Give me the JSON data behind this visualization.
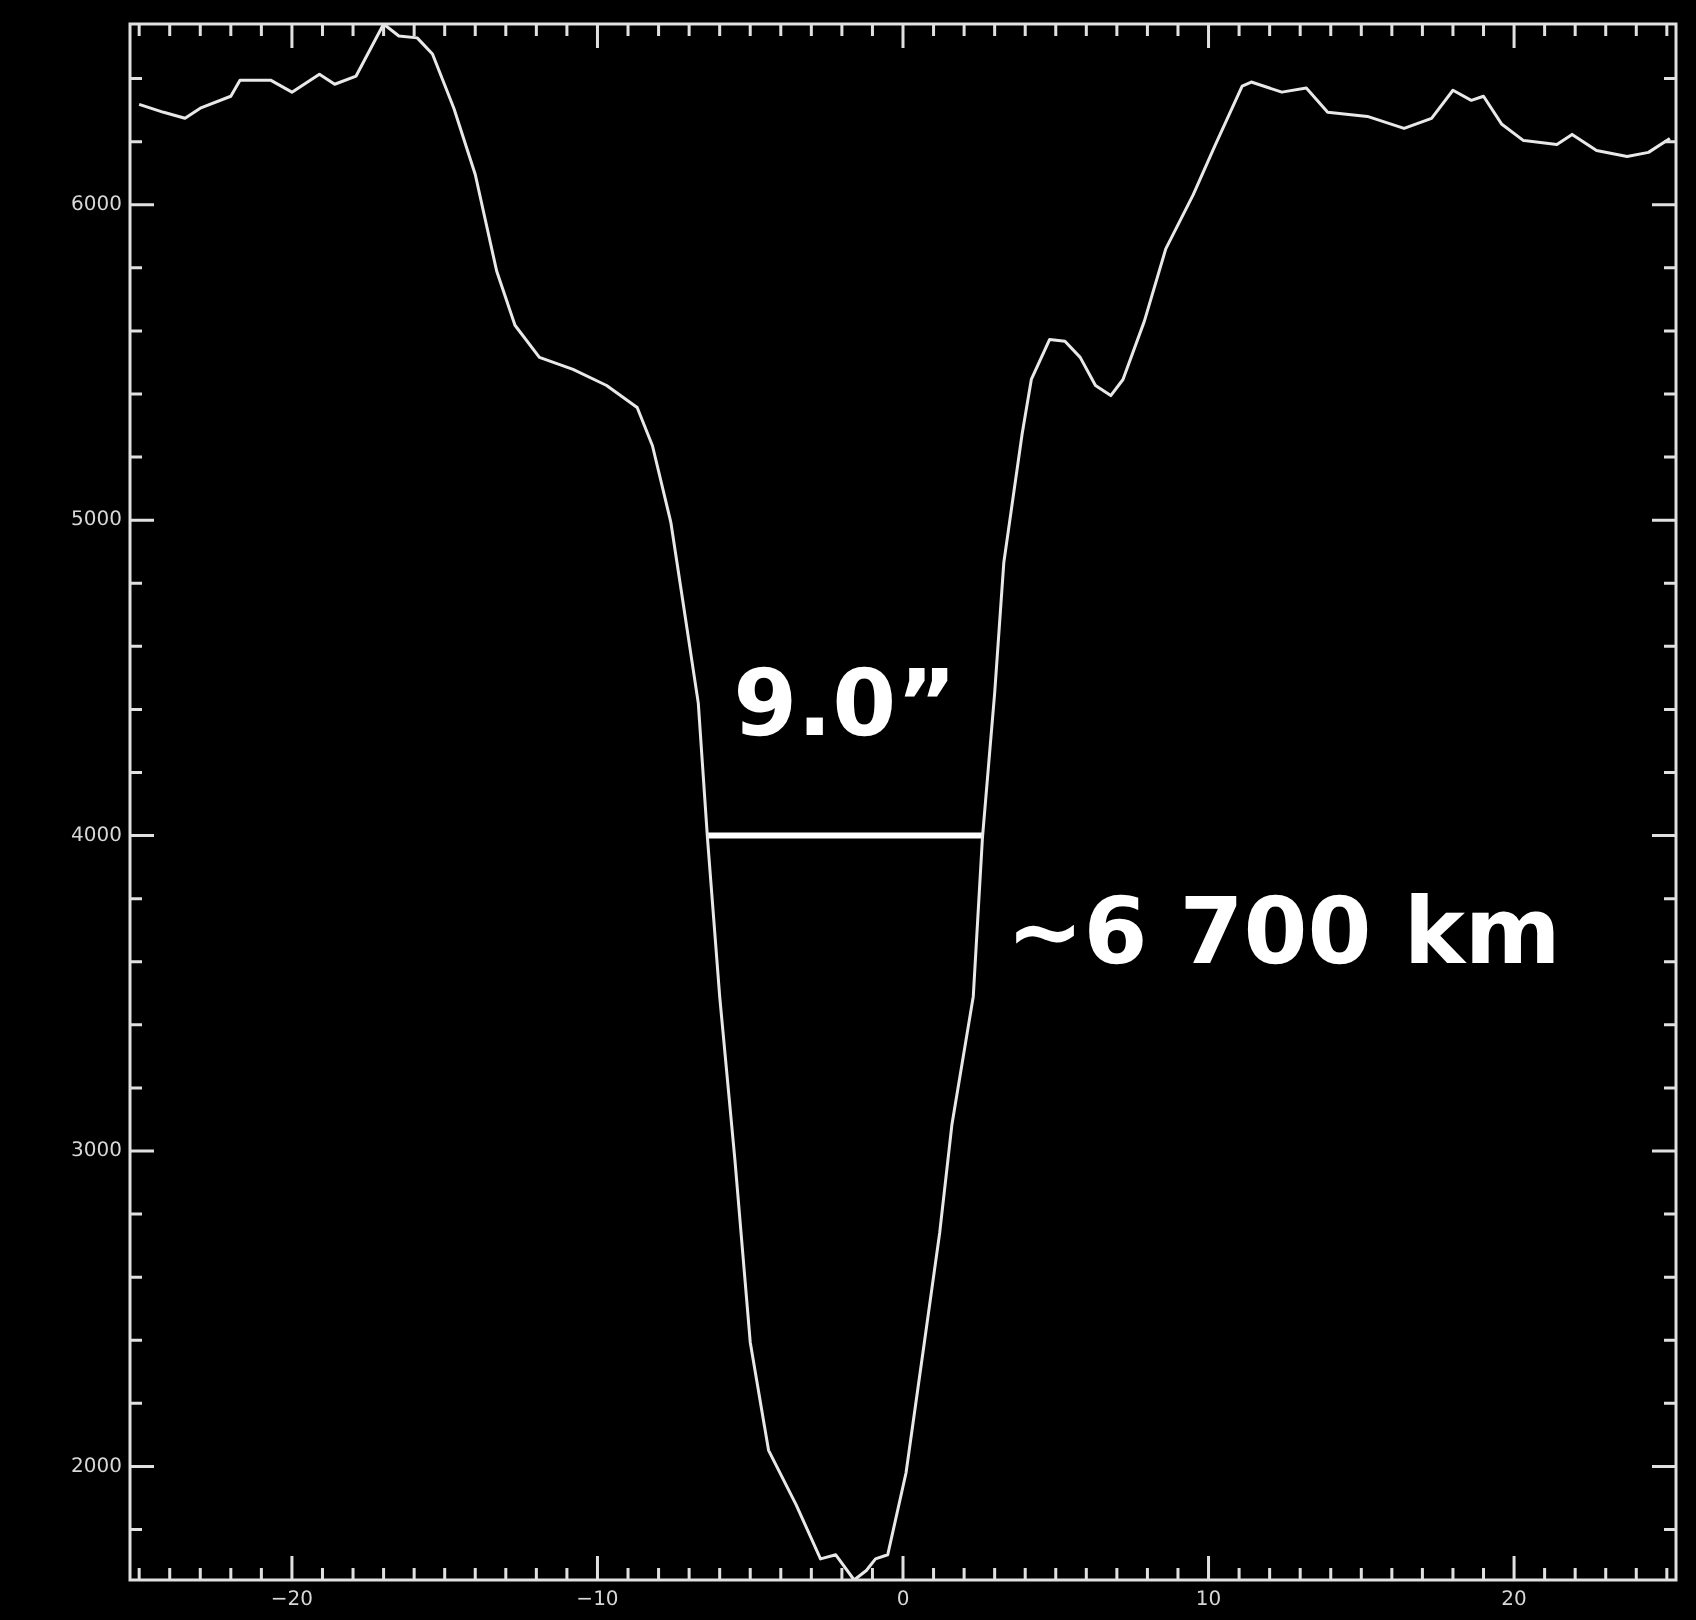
{
  "chart_data": {
    "type": "line",
    "xlim": [
      -25.3,
      25.3
    ],
    "ylim": [
      1640,
      6573
    ],
    "xticks": [
      {
        "value": -25,
        "label": null
      },
      {
        "value": -24,
        "label": null
      },
      {
        "value": -23,
        "label": null
      },
      {
        "value": -22,
        "label": null
      },
      {
        "value": -21,
        "label": null
      },
      {
        "value": -20,
        "label": "−20"
      },
      {
        "value": -19,
        "label": null
      },
      {
        "value": -18,
        "label": null
      },
      {
        "value": -17,
        "label": null
      },
      {
        "value": -16,
        "label": null
      },
      {
        "value": -15,
        "label": null
      },
      {
        "value": -14,
        "label": null
      },
      {
        "value": -13,
        "label": null
      },
      {
        "value": -12,
        "label": null
      },
      {
        "value": -11,
        "label": null
      },
      {
        "value": -10,
        "label": "−10"
      },
      {
        "value": -9,
        "label": null
      },
      {
        "value": -8,
        "label": null
      },
      {
        "value": -7,
        "label": null
      },
      {
        "value": -6,
        "label": null
      },
      {
        "value": -5,
        "label": null
      },
      {
        "value": -4,
        "label": null
      },
      {
        "value": -3,
        "label": null
      },
      {
        "value": -2,
        "label": null
      },
      {
        "value": -1,
        "label": null
      },
      0,
      {
        "value": 1,
        "label": null
      },
      {
        "value": 2,
        "label": null
      },
      {
        "value": 3,
        "label": null
      },
      {
        "value": 4,
        "label": null
      },
      {
        "value": 5,
        "label": null
      },
      {
        "value": 6,
        "label": null
      },
      {
        "value": 7,
        "label": null
      },
      {
        "value": 8,
        "label": null
      },
      {
        "value": 9,
        "label": null
      },
      10,
      {
        "value": 11,
        "label": null
      },
      {
        "value": 12,
        "label": null
      },
      {
        "value": 13,
        "label": null
      },
      {
        "value": 14,
        "label": null
      },
      {
        "value": 15,
        "label": null
      },
      {
        "value": 16,
        "label": null
      },
      {
        "value": 17,
        "label": null
      },
      {
        "value": 18,
        "label": null
      },
      {
        "value": 19,
        "label": null
      },
      20,
      {
        "value": 21,
        "label": null
      },
      {
        "value": 22,
        "label": null
      },
      {
        "value": 23,
        "label": null
      },
      {
        "value": 24,
        "label": null
      },
      {
        "value": 25,
        "label": null
      }
    ],
    "yticks": [
      {
        "value": 1800,
        "label": null
      },
      2000,
      {
        "value": 2200,
        "label": null
      },
      {
        "value": 2400,
        "label": null
      },
      {
        "value": 2600,
        "label": null
      },
      {
        "value": 2800,
        "label": null
      },
      3000,
      {
        "value": 3200,
        "label": null
      },
      {
        "value": 3400,
        "label": null
      },
      {
        "value": 3600,
        "label": null
      },
      {
        "value": 3800,
        "label": null
      },
      4000,
      {
        "value": 4200,
        "label": null
      },
      {
        "value": 4400,
        "label": null
      },
      {
        "value": 4600,
        "label": null
      },
      {
        "value": 4800,
        "label": null
      },
      5000,
      {
        "value": 5200,
        "label": null
      },
      {
        "value": 5400,
        "label": null
      },
      {
        "value": 5600,
        "label": null
      },
      {
        "value": 5800,
        "label": null
      },
      6000,
      {
        "value": 6200,
        "label": null
      },
      {
        "value": 6400,
        "label": null
      }
    ],
    "grid": false,
    "legend": false,
    "marker": "none",
    "series": [
      {
        "color": "#e8e8e8",
        "x": [
          -25.0,
          -24.2,
          -23.5,
          -23.0,
          -22.0,
          -21.7,
          -20.7,
          -20.0,
          -19.1,
          -18.6,
          -17.9,
          -17.0,
          -16.5,
          -15.9,
          -15.4,
          -14.7,
          -14.0,
          -13.3,
          -12.7,
          -11.9,
          -10.8,
          -9.7,
          -8.7,
          -8.2,
          -7.6,
          -7.2,
          -6.7,
          -6.4,
          -6.0,
          -5.5,
          -5.0,
          -4.4,
          -3.5,
          -2.7,
          -2.2,
          -1.6,
          -1.2,
          -0.9,
          -0.5,
          0.1,
          0.7,
          1.2,
          1.6,
          2.3,
          2.6,
          3.0,
          3.3,
          3.9,
          4.2,
          4.8,
          5.3,
          5.8,
          6.3,
          6.8,
          7.2,
          7.9,
          8.6,
          9.5,
          10.2,
          11.1,
          11.4,
          12.4,
          13.2,
          13.9,
          15.2,
          16.4,
          17.3,
          18.0,
          18.6,
          19.0,
          19.6,
          20.3,
          21.4,
          21.9,
          22.7,
          23.7,
          24.4,
          25.1
        ],
        "values": [
          6318,
          6293,
          6274,
          6306,
          6344,
          6395,
          6395,
          6357,
          6414,
          6382,
          6408,
          6573,
          6535,
          6529,
          6478,
          6306,
          6096,
          5790,
          5618,
          5516,
          5478,
          5427,
          5357,
          5236,
          4994,
          4740,
          4420,
          3993,
          3490,
          2970,
          2394,
          2051,
          1879,
          1707,
          1720,
          1640,
          1670,
          1707,
          1720,
          1980,
          2394,
          2740,
          3083,
          3490,
          3993,
          4452,
          4866,
          5274,
          5446,
          5573,
          5567,
          5516,
          5427,
          5395,
          5446,
          5631,
          5860,
          6032,
          6185,
          6376,
          6389,
          6357,
          6370,
          6293,
          6280,
          6242,
          6274,
          6363,
          6331,
          6344,
          6255,
          6204,
          6191,
          6223,
          6172,
          6153,
          6166,
          6210
        ]
      },
      {
        "color": "#ffffff",
        "x": [
          -6.4,
          2.6
        ],
        "values": [
          4000,
          4000
        ]
      }
    ],
    "annotations": [
      "9.0”",
      "~6 700 km"
    ]
  }
}
